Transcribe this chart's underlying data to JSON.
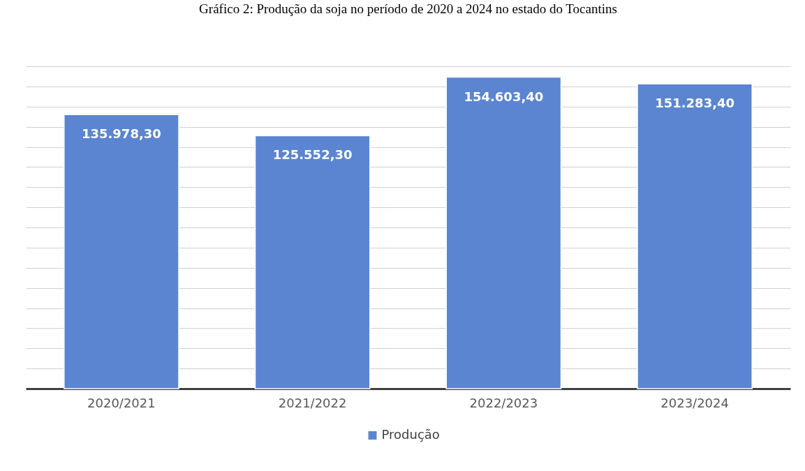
{
  "chart_data": {
    "type": "bar",
    "title": "Gráfico 2: Produção da soja no período de 2020 a 2024 no estado do Tocantins",
    "categories": [
      "2020/2021",
      "2021/2022",
      "2022/2023",
      "2023/2024"
    ],
    "series": [
      {
        "name": "Produção",
        "color": "#5b85d0",
        "values": [
          135978.3,
          125552.3,
          154603.4,
          151283.4
        ],
        "value_labels": [
          "135.978,30",
          "125.552,30",
          "154.603,40",
          "151.283,40"
        ]
      }
    ],
    "tick_labels": "x",
    "grid": "y",
    "legend": "bottom"
  }
}
